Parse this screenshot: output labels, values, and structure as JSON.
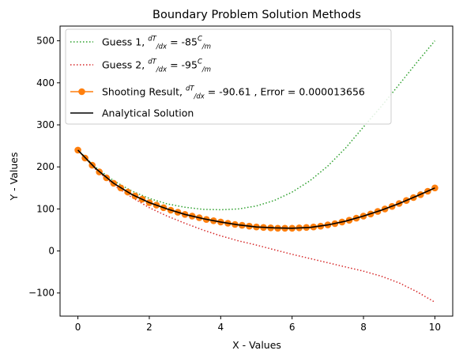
{
  "chart_data": {
    "type": "line",
    "title": "Boundary Problem Solution Methods",
    "xlabel": "X - Values",
    "ylabel": "Y - Values",
    "xlim": [
      -0.5,
      10.5
    ],
    "ylim": [
      -155,
      535
    ],
    "xticks": [
      0,
      2,
      4,
      6,
      8,
      10
    ],
    "yticks": [
      -100,
      0,
      100,
      200,
      300,
      400,
      500
    ],
    "xtick_labels": [
      "0",
      "2",
      "4",
      "6",
      "8",
      "10"
    ],
    "ytick_labels": [
      "−100",
      "0",
      "100",
      "200",
      "300",
      "400",
      "500"
    ],
    "grid": false,
    "legend_position": "top-left",
    "series": [
      {
        "name": "Guess 1",
        "legend_parts": {
          "prefix": "Guess 1, ",
          "frac_top": "dT",
          "frac_bottom": "dx",
          "mid": " = -85",
          "unit_top": "C",
          "unit_bottom": "m",
          "suffix": ""
        },
        "style": "dotted",
        "color": "#2ca02c",
        "marker": "none",
        "x": [
          0,
          0.5,
          1,
          1.5,
          2,
          2.5,
          3,
          3.5,
          4,
          4.5,
          5,
          5.5,
          6,
          6.5,
          7,
          7.5,
          8,
          8.5,
          9,
          9.5,
          10
        ],
        "y": [
          240,
          199,
          167,
          143,
          125,
          112,
          104,
          99,
          98,
          100,
          107,
          120,
          140,
          167,
          202,
          245,
          295,
          344,
          396,
          449,
          500
        ]
      },
      {
        "name": "Guess 2",
        "legend_parts": {
          "prefix": "Guess 2, ",
          "frac_top": "dT",
          "frac_bottom": "dx",
          "mid": " = -95",
          "unit_top": "C",
          "unit_bottom": "m",
          "suffix": ""
        },
        "style": "dotted",
        "color": "#d62728",
        "marker": "none",
        "x": [
          0,
          0.5,
          1,
          1.5,
          2,
          2.5,
          3,
          3.5,
          4,
          4.5,
          5,
          5.5,
          6,
          6.5,
          7,
          7.5,
          8,
          8.5,
          9,
          9.5,
          10
        ],
        "y": [
          240,
          194,
          157,
          128,
          103,
          83,
          66,
          50,
          36,
          24,
          14,
          3,
          -8,
          -18,
          -28,
          -38,
          -48,
          -60,
          -76,
          -97,
          -122
        ]
      },
      {
        "name": "Shooting Result",
        "legend_parts": {
          "prefix": "Shooting Result, ",
          "frac_top": "dT",
          "frac_bottom": "dx",
          "mid": " = -90.61 , Error = 0.000013656",
          "unit_top": "",
          "unit_bottom": "",
          "suffix": ""
        },
        "style": "solid",
        "color": "#ff7f0e",
        "marker": "circle",
        "x": [
          0,
          0.2,
          0.4,
          0.6,
          0.8,
          1.0,
          1.2,
          1.4,
          1.6,
          1.8,
          2.0,
          2.2,
          2.4,
          2.6,
          2.8,
          3.0,
          3.2,
          3.4,
          3.6,
          3.8,
          4.0,
          4.2,
          4.4,
          4.6,
          4.8,
          5.0,
          5.2,
          5.4,
          5.6,
          5.8,
          6.0,
          6.2,
          6.4,
          6.6,
          6.8,
          7.0,
          7.2,
          7.4,
          7.6,
          7.8,
          8.0,
          8.2,
          8.4,
          8.6,
          8.8,
          9.0,
          9.2,
          9.4,
          9.6,
          9.8,
          10.0
        ],
        "y": [
          240,
          221,
          204,
          188,
          174,
          161,
          150,
          140,
          131,
          123,
          115,
          109,
          103,
          97,
          92,
          87,
          83,
          79,
          75,
          72,
          69,
          66,
          63,
          61,
          59,
          57,
          56,
          55,
          54,
          54,
          54,
          55,
          56,
          57,
          59,
          62,
          65,
          69,
          73,
          78,
          83,
          88,
          94,
          100,
          106,
          113,
          120,
          127,
          134,
          142,
          150
        ]
      },
      {
        "name": "Analytical Solution",
        "legend_parts": {
          "prefix": "Analytical Solution",
          "frac_top": "",
          "frac_bottom": "",
          "mid": "",
          "unit_top": "",
          "unit_bottom": "",
          "suffix": ""
        },
        "style": "solid",
        "color": "#000000",
        "marker": "none",
        "x": [
          0,
          0.5,
          1,
          1.5,
          2,
          2.5,
          3,
          3.5,
          4,
          4.5,
          5,
          5.5,
          6,
          6.5,
          7,
          7.5,
          8,
          8.5,
          9,
          9.5,
          10
        ],
        "y": [
          240,
          196,
          161,
          135,
          115,
          100,
          87,
          77,
          69,
          62,
          57,
          55,
          54,
          56,
          62,
          71,
          83,
          97,
          113,
          131,
          150
        ]
      }
    ]
  }
}
